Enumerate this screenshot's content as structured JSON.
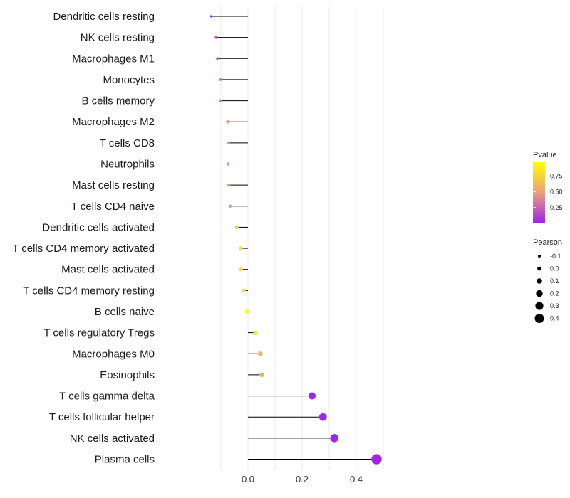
{
  "chart_data": {
    "type": "lollipop",
    "title": "",
    "xlabel": "",
    "ylabel": "",
    "xlim": [
      -0.2,
      0.52
    ],
    "x_ticks": [
      0.0,
      0.2,
      0.4
    ],
    "x_tick_labels": [
      "0.0",
      "0.2",
      "0.4"
    ],
    "grid": true,
    "categories": [
      "Dendritic cells resting",
      "NK cells resting",
      "Macrophages M1",
      "Monocytes",
      "B cells memory",
      "Macrophages M2",
      "T cells CD8",
      "Neutrophils",
      "Mast cells resting",
      "T cells CD4 naive",
      "Dendritic cells activated",
      "T cells CD4 memory activated",
      "Mast cells activated",
      "T cells CD4 memory resting",
      "B cells naive",
      "T cells regulatory  Tregs",
      "Macrophages M0",
      "Eosinophils",
      "T cells gamma delta",
      "T cells follicular helper",
      "NK cells activated",
      "Plasma cells"
    ],
    "values": [
      -0.135,
      -0.118,
      -0.113,
      -0.101,
      -0.101,
      -0.075,
      -0.073,
      -0.073,
      -0.071,
      -0.066,
      -0.041,
      -0.027,
      -0.026,
      -0.016,
      -0.004,
      0.028,
      0.046,
      0.051,
      0.237,
      0.277,
      0.319,
      0.475
    ],
    "pvalues": [
      0.01,
      0.15,
      0.16,
      0.35,
      0.35,
      0.45,
      0.47,
      0.47,
      0.47,
      0.48,
      0.7,
      0.8,
      0.8,
      0.85,
      0.98,
      0.85,
      0.6,
      0.58,
      0.01,
      0.01,
      0.01,
      0.01
    ],
    "legend_pvalue": {
      "title": "Pvalue",
      "placement": "right",
      "range": [
        0.0,
        0.97
      ],
      "ticks": [
        0.25,
        0.5,
        0.75
      ],
      "tick_labels": [
        "0.25",
        "0.50",
        "0.75"
      ],
      "color_low": "#a020f0",
      "color_mid": "#e9a07a",
      "color_high": "#ffff00"
    },
    "legend_pearson": {
      "title": "Pearson",
      "placement": "right",
      "values": [
        -0.1,
        0.0,
        0.1,
        0.2,
        0.3,
        0.4
      ],
      "labels": [
        "-0.1",
        "0.0",
        "0.1",
        "0.2",
        "0.3",
        "0.4"
      ]
    },
    "colors": {
      "grid": "#ebebeb",
      "segment": "#000000",
      "text": "#1a1a1a"
    }
  }
}
